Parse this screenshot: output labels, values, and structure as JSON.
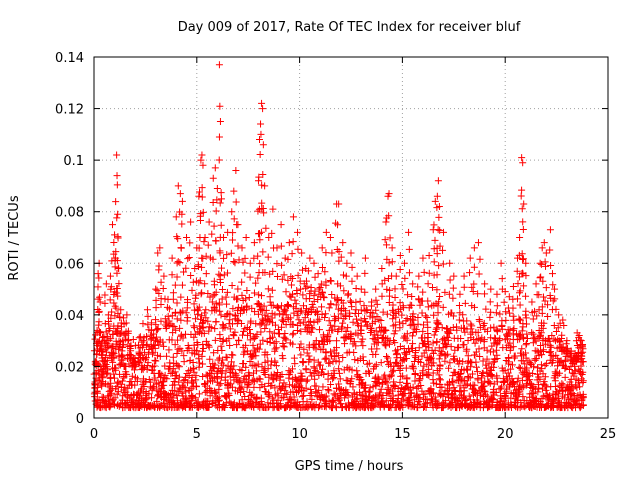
{
  "chart_data": {
    "type": "scatter",
    "title": "Day 009 of 2017, Rate Of TEC Index for receiver bluf",
    "xlabel": "GPS time / hours",
    "ylabel": "ROTI / TECUs",
    "xlim": [
      0,
      25
    ],
    "ylim": [
      0,
      0.14
    ],
    "x_ticks": [
      0,
      5,
      10,
      15,
      20,
      25
    ],
    "x_tick_labels": [
      "0",
      "5",
      "10",
      "15",
      "20",
      "25"
    ],
    "y_ticks": [
      0,
      0.02,
      0.04,
      0.06,
      0.08,
      0.1,
      0.12,
      0.14
    ],
    "y_tick_labels": [
      "0",
      "0.02",
      "0.04",
      "0.06",
      "0.08",
      "0.1",
      "0.12",
      "0.14"
    ],
    "grid": true,
    "marker": "+",
    "marker_color": "#ff0000",
    "grid_color": "#a0a0a0",
    "series": [
      {
        "name": "ROTI",
        "points": [
          [
            0.05,
            0.01
          ],
          [
            0.1,
            0.022
          ],
          [
            0.15,
            0.034
          ],
          [
            0.2,
            0.056
          ],
          [
            0.25,
            0.06
          ],
          [
            0.3,
            0.045
          ],
          [
            0.35,
            0.028
          ],
          [
            0.4,
            0.016
          ],
          [
            0.5,
            0.03
          ],
          [
            0.6,
            0.052
          ],
          [
            0.7,
            0.04
          ],
          [
            0.8,
            0.055
          ],
          [
            0.9,
            0.075
          ],
          [
            1.0,
            0.071
          ],
          [
            1.05,
            0.062
          ],
          [
            1.1,
            0.102
          ],
          [
            1.12,
            0.094
          ],
          [
            1.15,
            0.079
          ],
          [
            1.2,
            0.058
          ],
          [
            1.3,
            0.042
          ],
          [
            1.4,
            0.03
          ],
          [
            1.5,
            0.02
          ],
          [
            1.6,
            0.04
          ],
          [
            1.8,
            0.028
          ],
          [
            2.0,
            0.022
          ],
          [
            2.2,
            0.025
          ],
          [
            2.4,
            0.03
          ],
          [
            2.6,
            0.042
          ],
          [
            2.8,
            0.034
          ],
          [
            3.0,
            0.05
          ],
          [
            3.1,
            0.064
          ],
          [
            3.2,
            0.066
          ],
          [
            3.4,
            0.055
          ],
          [
            3.6,
            0.046
          ],
          [
            3.8,
            0.062
          ],
          [
            4.0,
            0.078
          ],
          [
            4.1,
            0.09
          ],
          [
            4.2,
            0.087
          ],
          [
            4.3,
            0.084
          ],
          [
            4.5,
            0.07
          ],
          [
            4.7,
            0.076
          ],
          [
            4.9,
            0.058
          ],
          [
            5.0,
            0.066
          ],
          [
            5.1,
            0.086
          ],
          [
            5.2,
            0.1
          ],
          [
            5.25,
            0.102
          ],
          [
            5.3,
            0.098
          ],
          [
            5.4,
            0.07
          ],
          [
            5.6,
            0.076
          ],
          [
            5.8,
            0.093
          ],
          [
            5.9,
            0.097
          ],
          [
            6.0,
            0.089
          ],
          [
            6.1,
            0.137
          ],
          [
            6.15,
            0.115
          ],
          [
            6.2,
            0.085
          ],
          [
            6.3,
            0.07
          ],
          [
            6.5,
            0.072
          ],
          [
            6.7,
            0.08
          ],
          [
            6.8,
            0.088
          ],
          [
            6.9,
            0.096
          ],
          [
            7.0,
            0.075
          ],
          [
            7.2,
            0.066
          ],
          [
            7.4,
            0.07
          ],
          [
            7.6,
            0.06
          ],
          [
            7.8,
            0.068
          ],
          [
            8.0,
            0.092
          ],
          [
            8.05,
            0.108
          ],
          [
            8.1,
            0.114
          ],
          [
            8.15,
            0.122
          ],
          [
            8.2,
            0.12
          ],
          [
            8.3,
            0.09
          ],
          [
            8.5,
            0.07
          ],
          [
            8.7,
            0.081
          ],
          [
            8.9,
            0.066
          ],
          [
            9.1,
            0.075
          ],
          [
            9.3,
            0.062
          ],
          [
            9.5,
            0.068
          ],
          [
            9.7,
            0.078
          ],
          [
            9.9,
            0.072
          ],
          [
            10.1,
            0.064
          ],
          [
            10.3,
            0.058
          ],
          [
            10.5,
            0.062
          ],
          [
            10.7,
            0.06
          ],
          [
            10.9,
            0.056
          ],
          [
            11.1,
            0.066
          ],
          [
            11.3,
            0.072
          ],
          [
            11.5,
            0.07
          ],
          [
            11.8,
            0.083
          ],
          [
            11.9,
            0.083
          ],
          [
            12.1,
            0.068
          ],
          [
            12.3,
            0.06
          ],
          [
            12.5,
            0.064
          ],
          [
            12.8,
            0.055
          ],
          [
            13.0,
            0.05
          ],
          [
            13.2,
            0.062
          ],
          [
            13.5,
            0.045
          ],
          [
            13.7,
            0.05
          ],
          [
            14.0,
            0.058
          ],
          [
            14.2,
            0.076
          ],
          [
            14.3,
            0.086
          ],
          [
            14.35,
            0.087
          ],
          [
            14.5,
            0.066
          ],
          [
            14.7,
            0.055
          ],
          [
            14.9,
            0.063
          ],
          [
            15.1,
            0.06
          ],
          [
            15.3,
            0.072
          ],
          [
            15.5,
            0.052
          ],
          [
            15.8,
            0.055
          ],
          [
            16.0,
            0.062
          ],
          [
            16.3,
            0.063
          ],
          [
            16.5,
            0.073
          ],
          [
            16.6,
            0.084
          ],
          [
            16.7,
            0.086
          ],
          [
            16.75,
            0.092
          ],
          [
            16.8,
            0.082
          ],
          [
            17.0,
            0.072
          ],
          [
            17.3,
            0.06
          ],
          [
            17.5,
            0.055
          ],
          [
            17.8,
            0.048
          ],
          [
            18.0,
            0.055
          ],
          [
            18.3,
            0.062
          ],
          [
            18.5,
            0.066
          ],
          [
            18.7,
            0.068
          ],
          [
            19.0,
            0.052
          ],
          [
            19.3,
            0.05
          ],
          [
            19.6,
            0.048
          ],
          [
            19.8,
            0.06
          ],
          [
            20.0,
            0.049
          ],
          [
            20.2,
            0.047
          ],
          [
            20.4,
            0.051
          ],
          [
            20.6,
            0.062
          ],
          [
            20.7,
            0.07
          ],
          [
            20.8,
            0.101
          ],
          [
            20.85,
            0.099
          ],
          [
            20.9,
            0.083
          ],
          [
            21.0,
            0.06
          ],
          [
            21.3,
            0.045
          ],
          [
            21.5,
            0.052
          ],
          [
            21.7,
            0.06
          ],
          [
            21.8,
            0.066
          ],
          [
            21.9,
            0.068
          ],
          [
            22.0,
            0.064
          ],
          [
            22.2,
            0.073
          ],
          [
            22.3,
            0.056
          ],
          [
            22.4,
            0.05
          ],
          [
            22.6,
            0.04
          ],
          [
            22.8,
            0.038
          ],
          [
            23.0,
            0.03
          ],
          [
            23.2,
            0.026
          ],
          [
            23.4,
            0.025
          ],
          [
            23.5,
            0.033
          ],
          [
            23.6,
            0.032
          ],
          [
            23.7,
            0.03
          ],
          [
            23.75,
            0.028
          ]
        ],
        "band": {
          "x_start": 0.0,
          "x_end": 23.8,
          "x_step": 0.08,
          "floor": 0.004,
          "ceiling_profile": [
            [
              0,
              0.03
            ],
            [
              1,
              0.035
            ],
            [
              2,
              0.03
            ],
            [
              3,
              0.033
            ],
            [
              4,
              0.038
            ],
            [
              5,
              0.04
            ],
            [
              6,
              0.042
            ],
            [
              7,
              0.04
            ],
            [
              8,
              0.044
            ],
            [
              9,
              0.045
            ],
            [
              10,
              0.047
            ],
            [
              11,
              0.046
            ],
            [
              12,
              0.042
            ],
            [
              13,
              0.04
            ],
            [
              14,
              0.04
            ],
            [
              15,
              0.038
            ],
            [
              16,
              0.04
            ],
            [
              17,
              0.036
            ],
            [
              18,
              0.034
            ],
            [
              19,
              0.032
            ],
            [
              20,
              0.033
            ],
            [
              21,
              0.035
            ],
            [
              22,
              0.032
            ],
            [
              23,
              0.026
            ],
            [
              23.8,
              0.022
            ]
          ]
        }
      }
    ]
  }
}
